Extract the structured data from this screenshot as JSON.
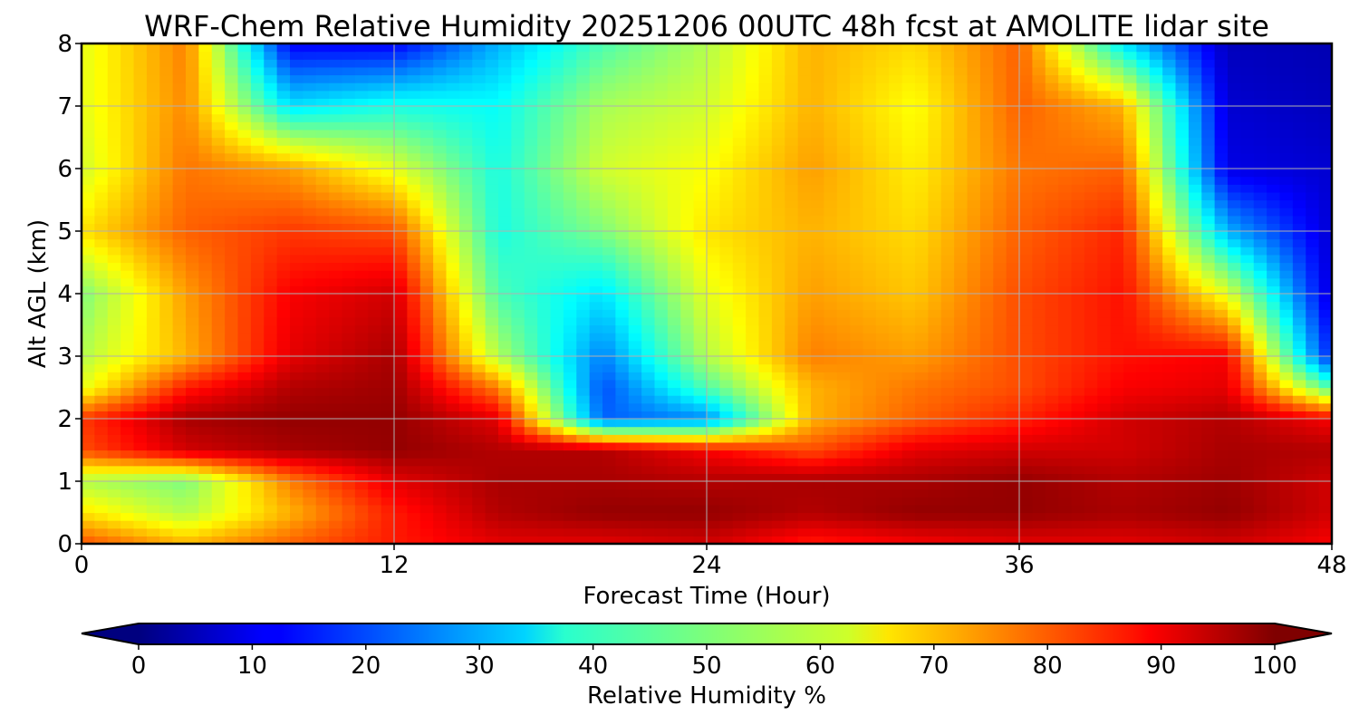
{
  "chart_data": {
    "type": "heatmap",
    "title": "WRF-Chem Relative Humidity 20251206 00UTC 48h fcst at AMOLITE lidar site",
    "xlabel": "Forecast Time (Hour)",
    "ylabel": "Alt AGL (km)",
    "xlim": [
      0,
      48
    ],
    "ylim": [
      0,
      8
    ],
    "x_ticks": [
      0,
      12,
      24,
      36,
      48
    ],
    "y_ticks": [
      0,
      1,
      2,
      3,
      4,
      5,
      6,
      7,
      8
    ],
    "grid": true,
    "colormap": "jet",
    "colorbar": {
      "label": "Relative Humidity %",
      "min": 0,
      "max": 100,
      "ticks": [
        0,
        10,
        20,
        30,
        40,
        50,
        60,
        70,
        80,
        90,
        100
      ],
      "extend": "both",
      "orientation": "horizontal",
      "placement": "bottom"
    },
    "z_units": "%",
    "x": [
      0,
      4,
      8,
      12,
      16,
      20,
      24,
      28,
      32,
      36,
      40,
      44,
      48
    ],
    "y": [
      0,
      0.5,
      1,
      1.5,
      2,
      2.5,
      3,
      4,
      5,
      6,
      7,
      8
    ],
    "z": [
      [
        80,
        70,
        78,
        85,
        90,
        90,
        92,
        85,
        88,
        90,
        90,
        92,
        88
      ],
      [
        65,
        55,
        70,
        85,
        95,
        98,
        98,
        95,
        98,
        98,
        96,
        98,
        92
      ],
      [
        55,
        50,
        75,
        90,
        96,
        96,
        95,
        96,
        96,
        98,
        95,
        97,
        92
      ],
      [
        80,
        92,
        96,
        98,
        95,
        95,
        88,
        80,
        90,
        92,
        92,
        96,
        95
      ],
      [
        82,
        96,
        98,
        98,
        90,
        22,
        26,
        70,
        78,
        84,
        92,
        95,
        88
      ],
      [
        60,
        85,
        95,
        97,
        75,
        20,
        45,
        70,
        76,
        80,
        88,
        90,
        45
      ],
      [
        55,
        70,
        90,
        96,
        55,
        25,
        55,
        75,
        72,
        80,
        86,
        88,
        15
      ],
      [
        50,
        72,
        88,
        92,
        45,
        35,
        60,
        72,
        68,
        80,
        86,
        60,
        8
      ],
      [
        65,
        78,
        82,
        80,
        40,
        50,
        65,
        70,
        66,
        78,
        84,
        30,
        8
      ],
      [
        58,
        76,
        72,
        60,
        40,
        58,
        62,
        72,
        64,
        76,
        78,
        10,
        8
      ],
      [
        60,
        74,
        35,
        40,
        38,
        54,
        58,
        70,
        62,
        78,
        70,
        8,
        6
      ],
      [
        60,
        75,
        12,
        12,
        30,
        45,
        55,
        70,
        66,
        78,
        35,
        6,
        5
      ]
    ]
  }
}
